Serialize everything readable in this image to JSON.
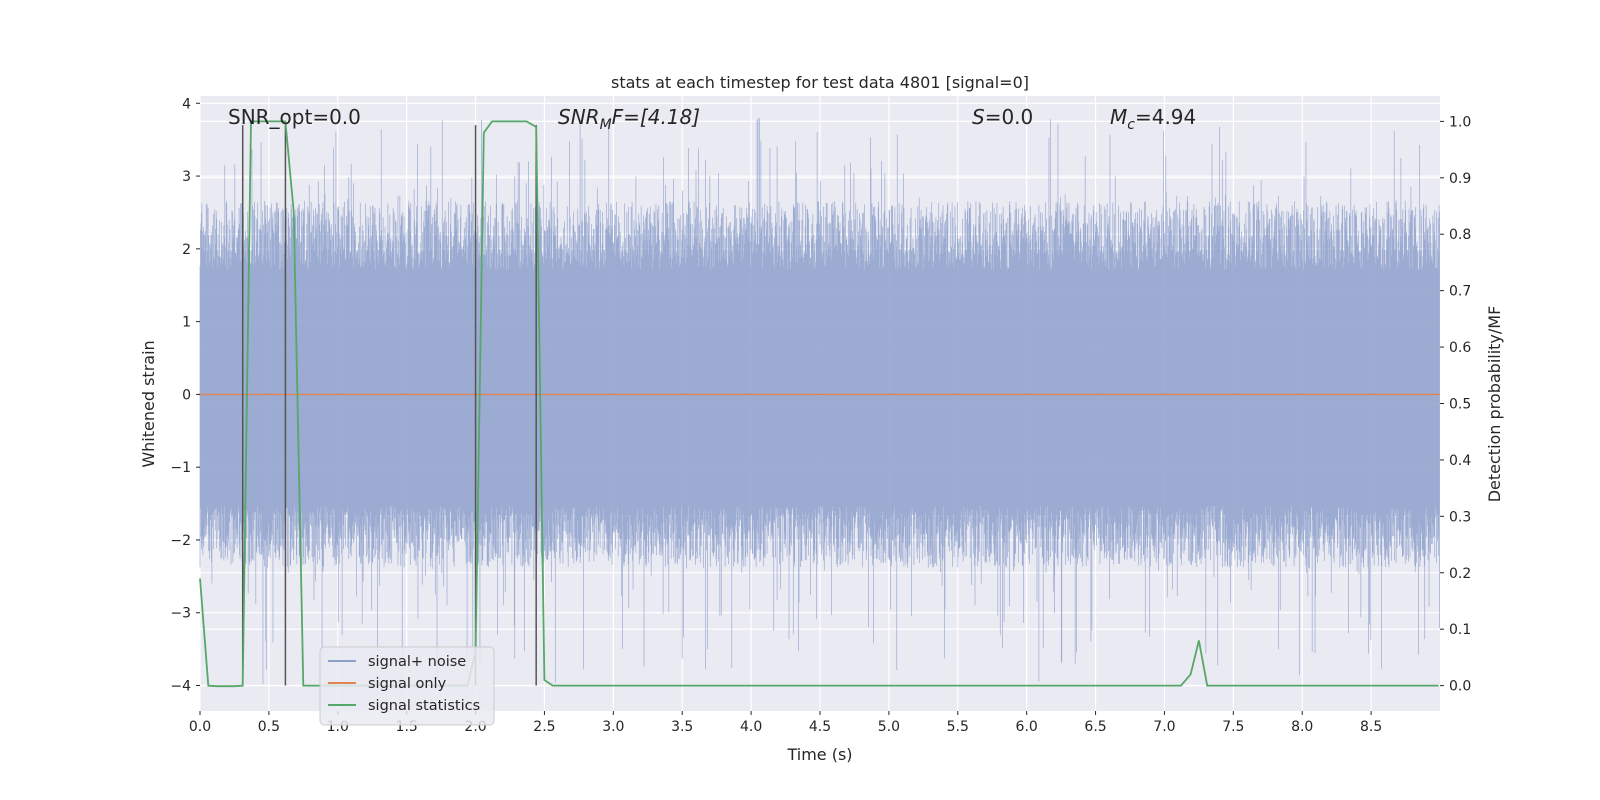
{
  "chart_data": {
    "type": "line",
    "title": "stats at each timestep for test data 4801 [signal=0]",
    "xlabel": "Time (s)",
    "ylabel": "Whitened strain",
    "ylabel_right": "Detection probability/MF",
    "xlim": [
      0,
      9.0
    ],
    "ylim": [
      -4.35,
      4.1
    ],
    "ylim_right": [
      -0.045,
      1.045
    ],
    "x_ticks": [
      "0.0",
      "0.5",
      "1.0",
      "1.5",
      "2.0",
      "2.5",
      "3.0",
      "3.5",
      "4.0",
      "4.5",
      "5.0",
      "5.5",
      "6.0",
      "6.5",
      "7.0",
      "7.5",
      "8.0",
      "8.5"
    ],
    "y_ticks": [
      "4",
      "3",
      "2",
      "1",
      "0",
      "−1",
      "−2",
      "−3",
      "−4"
    ],
    "y_ticks_right": [
      "1.0",
      "0.9",
      "0.8",
      "0.7",
      "0.6",
      "0.5",
      "0.4",
      "0.3",
      "0.2",
      "0.1",
      "0.0"
    ],
    "grid": true,
    "legend_position": "lower-left",
    "annotations": {
      "snr_opt": "SNR_opt=0.0",
      "snr_mf_var": "SNR",
      "snr_mf_sub": "M",
      "snr_mf_rest": "F=[4.18]",
      "s_var": "S",
      "s_rest": "=0.0",
      "mc_var": "M",
      "mc_sub": "c",
      "mc_rest": "=4.94"
    },
    "series": [
      {
        "name": "signal+ noise",
        "color": "#8da0cb",
        "axis": "left",
        "style": "dense noise band",
        "band_approx": [
          -1.7,
          1.9
        ],
        "peak_range": [
          -4.0,
          3.8
        ]
      },
      {
        "name": "signal only",
        "color": "#dd8452",
        "axis": "left",
        "x": [
          0,
          9.0
        ],
        "y": [
          0,
          0
        ]
      },
      {
        "name": "signal statistics",
        "color": "#55a868",
        "axis": "right",
        "x": [
          0.0,
          0.06,
          0.12,
          0.25,
          0.31,
          0.37,
          0.62,
          0.68,
          0.75,
          0.81,
          1.75,
          1.94,
          2.0,
          2.06,
          2.12,
          2.37,
          2.44,
          2.5,
          2.56,
          7.06,
          7.12,
          7.19,
          7.25,
          7.31,
          7.37,
          8.99
        ],
        "y": [
          0.19,
          0.0,
          -0.001,
          -0.001,
          0.0,
          1.0,
          1.0,
          0.84,
          0.0,
          0.0,
          0.0,
          0.0,
          0.06,
          0.98,
          1.0,
          1.0,
          0.99,
          0.01,
          0.0,
          0.0,
          0.0,
          0.02,
          0.08,
          0.0,
          0.0,
          0.0
        ]
      }
    ],
    "vertical_markers": [
      {
        "x": 0.31,
        "y_top": 3.7
      },
      {
        "x": 0.62,
        "y_top": 3.7
      },
      {
        "x": 2.0,
        "y_top": 3.7
      },
      {
        "x": 2.44,
        "y_top": 3.7
      }
    ]
  }
}
